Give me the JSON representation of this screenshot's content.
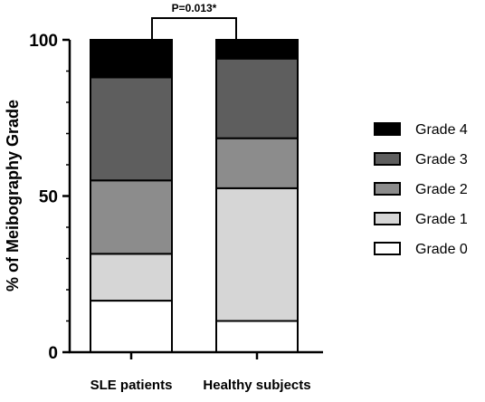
{
  "chart_data": {
    "type": "bar",
    "stacked": true,
    "categories": [
      "SLE patients",
      "Healthy subjects"
    ],
    "series": [
      {
        "name": "Grade 0",
        "color": "#ffffff",
        "values": [
          16.5,
          10
        ]
      },
      {
        "name": "Grade 1",
        "color": "#d6d6d6",
        "values": [
          15,
          42.5
        ]
      },
      {
        "name": "Grade 2",
        "color": "#8c8c8c",
        "values": [
          23.5,
          16
        ]
      },
      {
        "name": "Grade 3",
        "color": "#5e5e5e",
        "values": [
          33,
          25.5
        ]
      },
      {
        "name": "Grade 4",
        "color": "#000000",
        "values": [
          12,
          6
        ]
      }
    ],
    "ylabel": "% of Meibography Grade",
    "xlabel": "",
    "ylim": [
      0,
      100
    ],
    "yticks": [
      0,
      50,
      100
    ],
    "legend": "right",
    "legend_order": [
      "Grade 4",
      "Grade 3",
      "Grade 2",
      "Grade 1",
      "Grade 0"
    ],
    "annotation": "P=0.013*",
    "grid": false
  }
}
